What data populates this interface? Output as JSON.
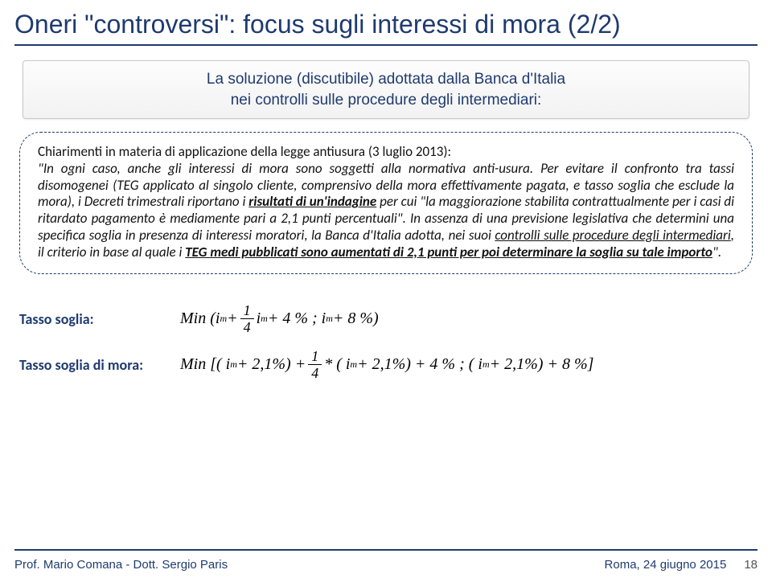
{
  "title": "Oneri \"controversi\": focus sugli interessi di mora (2/2)",
  "subtitle_line1": "La soluzione (discutibile) adottata dalla Banca d'Italia",
  "subtitle_line2": "nei controlli sulle procedure degli intermediari:",
  "body": {
    "lead": "Chiarimenti in materia di applicazione della legge antiusura (3 luglio 2013):",
    "q1": "\"In ogni caso, anche gli interessi di mora sono soggetti alla normativa anti-usura. Per evitare il confronto tra tassi disomogenei (TEG applicato al singolo cliente, comprensivo della mora effettivamente pagata, e tasso soglia che esclude la mora), i Decreti trimestrali riportano i ",
    "bu1": "risultati di un'indagine",
    "q2": " per cui \"la maggiorazione stabilita contrattualmente per i casi di ritardato pagamento è mediamente pari a 2,1 punti percentuali\". In assenza di una previsione legislativa che determini una specifica soglia in presenza di interessi moratori, la Banca d'Italia adotta, nei suoi ",
    "u2": "controlli sulle procedure degli intermediari",
    "q3": ", il criterio in base al quale i ",
    "bu3": "TEG medi pubblicati sono aumentati di 2,1 punti per poi determinare la soglia su tale importo",
    "q4": "\"."
  },
  "formulas": {
    "label1": "Tasso soglia:",
    "expr1_a": "Min (i",
    "expr1_b": " + ",
    "frac_num": "1",
    "frac_den": "4",
    "expr1_c": " i",
    "expr1_d": " + 4 % ; i",
    "expr1_e": " + 8 %)",
    "label2": "Tasso soglia di mora:",
    "expr2_a": "Min [( i",
    "expr2_b": " + 2,1%) + ",
    "expr2_c": " * ( i",
    "expr2_d": " + 2,1%) + 4 % ; ( i",
    "expr2_e": " + 2,1%) + 8 %]",
    "sub_m": "m"
  },
  "footer": {
    "left": "Prof. Mario Comana - Dott. Sergio Paris",
    "right": "Roma, 24 giugno 2015",
    "page": "18"
  }
}
